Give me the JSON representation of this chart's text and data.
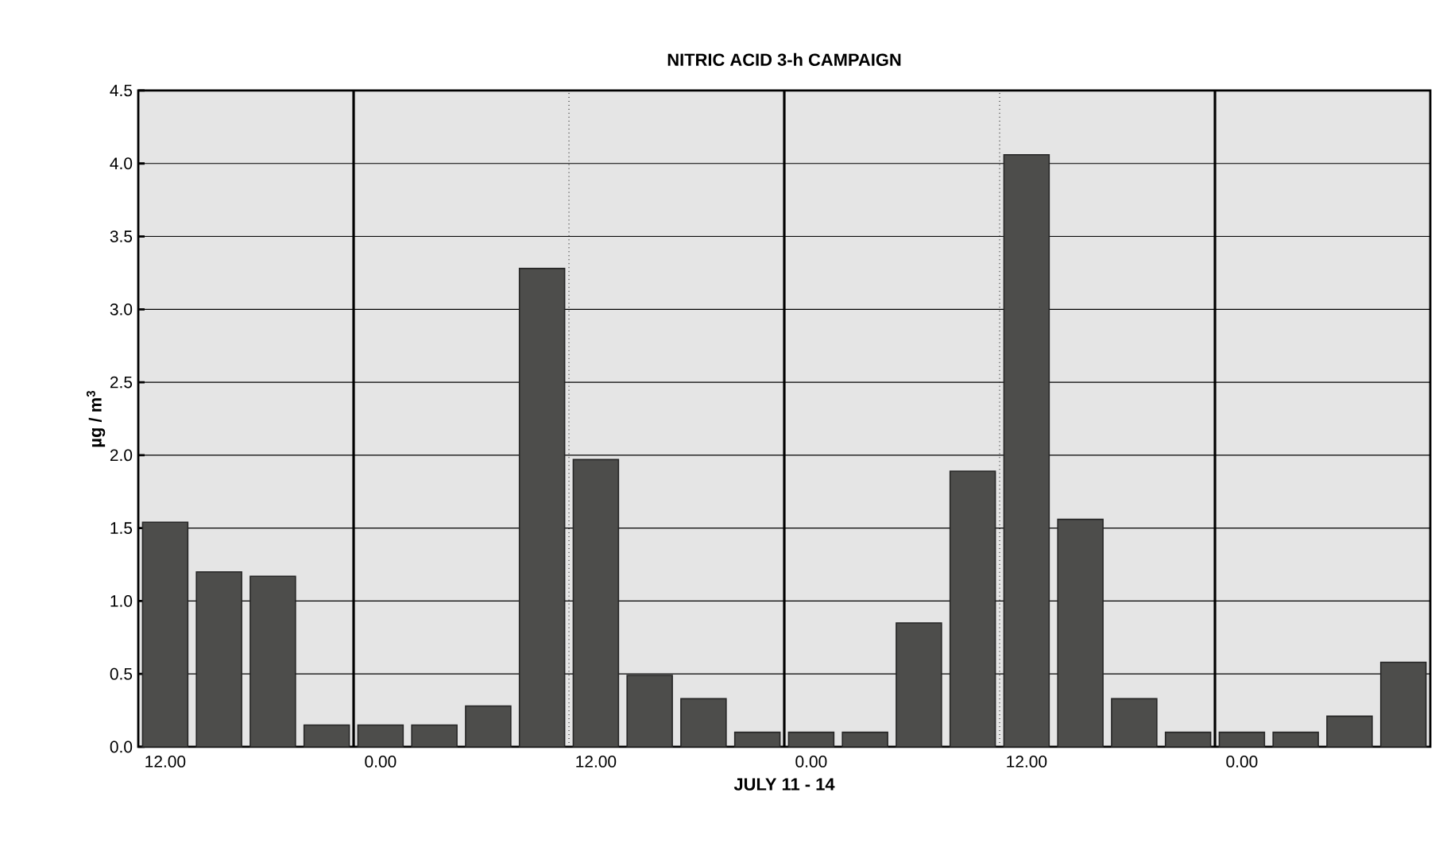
{
  "chart_data": {
    "type": "bar",
    "title": "NITRIC ACID 3-h CAMPAIGN",
    "xlabel": "JULY 11 - 14",
    "ylabel": "µg / m$^{3}$",
    "categories": [
      "12.00",
      null,
      null,
      null,
      "0.00",
      null,
      null,
      null,
      "12.00",
      null,
      null,
      null,
      "0.00",
      null,
      null,
      null,
      "12.00",
      null,
      null,
      null,
      "0.00",
      null,
      null,
      null
    ],
    "values": [
      1.54,
      1.2,
      1.17,
      0.15,
      0.15,
      0.15,
      0.28,
      3.28,
      1.97,
      0.49,
      0.33,
      0.1,
      0.1,
      0.1,
      0.85,
      1.89,
      4.06,
      1.56,
      0.33,
      0.1,
      0.1,
      0.1,
      0.21,
      0.58
    ],
    "color": "#4d4d4b",
    "ylim": [
      0,
      4.5
    ],
    "yticks": [
      {
        "value": 0,
        "label": "0.0"
      },
      {
        "value": 0.5,
        "label": "0.5"
      },
      {
        "value": 1,
        "label": "1.0"
      },
      {
        "value": 1.5,
        "label": "1.5"
      },
      {
        "value": 2,
        "label": "2.0"
      },
      {
        "value": 2.5,
        "label": "2.5"
      },
      {
        "value": 3,
        "label": "3.0"
      },
      {
        "value": 3.5,
        "label": "3.5"
      },
      {
        "value": 4,
        "label": "4.0"
      },
      {
        "value": 4.5,
        "label": "4.5"
      }
    ],
    "grid": true
  }
}
